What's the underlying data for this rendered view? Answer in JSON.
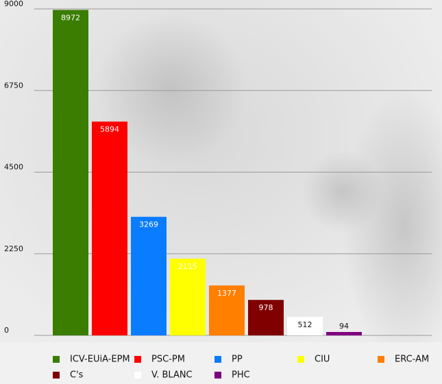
{
  "chart_data": {
    "type": "bar",
    "categories": [
      "ICV-EUiA-EPM",
      "PSC-PM",
      "PP",
      "CIU",
      "ERC-AM",
      "C's",
      "V. BLANC",
      "PHC"
    ],
    "values": [
      8972,
      5894,
      3269,
      2115,
      1377,
      978,
      512,
      94
    ],
    "colors": [
      "#3a7d00",
      "#ff0000",
      "#0a7cff",
      "#ffff00",
      "#ff7f00",
      "#800000",
      "#ffffff",
      "#800080"
    ],
    "ylim": [
      0,
      9000
    ],
    "yticks": [
      0,
      2250,
      4500,
      6750,
      9000
    ],
    "grid": true
  }
}
